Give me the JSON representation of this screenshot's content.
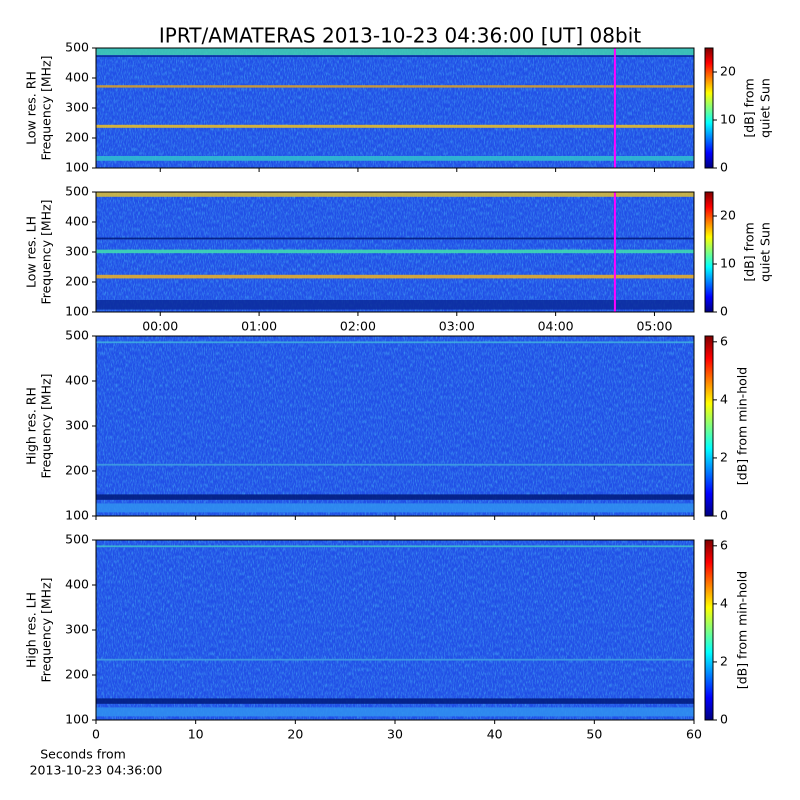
{
  "chart_data": [
    {
      "type": "heatmap",
      "title": "IPRT/AMATERAS 2013-10-23 04:36:00 [UT]   08bit",
      "ylabel": [
        "Low res. RH",
        "Frequency [MHz]"
      ],
      "ylim": [
        100,
        500
      ],
      "yticks": [
        100,
        200,
        300,
        400,
        500
      ],
      "xlim": [
        -0.65,
        5.4
      ],
      "vline": 4.6,
      "vline_color": "#ff00ff",
      "colorbar": {
        "label": [
          "[dB] from",
          "quiet Sun"
        ],
        "lim": [
          0,
          25
        ],
        "ticks": [
          0,
          10,
          20
        ]
      }
    },
    {
      "type": "heatmap",
      "ylabel": [
        "Low res. LH",
        "Frequency [MHz]"
      ],
      "ylim": [
        100,
        500
      ],
      "yticks": [
        100,
        200,
        300,
        400,
        500
      ],
      "xlim": [
        -0.65,
        5.4
      ],
      "vline": 4.6,
      "vline_color": "#ff00ff",
      "xticks": [
        {
          "value": 0,
          "label": "00:00"
        },
        {
          "value": 1,
          "label": "01:00"
        },
        {
          "value": 2,
          "label": "02:00"
        },
        {
          "value": 3,
          "label": "03:00"
        },
        {
          "value": 4,
          "label": "04:00"
        },
        {
          "value": 5,
          "label": "05:00"
        }
      ],
      "colorbar": {
        "label": [
          "[dB] from",
          "quiet Sun"
        ],
        "lim": [
          0,
          25
        ],
        "ticks": [
          0,
          10,
          20
        ]
      }
    },
    {
      "type": "heatmap",
      "ylabel": [
        "High res. RH",
        "Frequency [MHz]"
      ],
      "ylim": [
        100,
        500
      ],
      "yticks": [
        100,
        200,
        300,
        400,
        500
      ],
      "xlim": [
        0,
        60
      ],
      "colorbar": {
        "label": [
          "[dB] from min-hold"
        ],
        "lim": [
          0,
          6.2
        ],
        "ticks": [
          0,
          2,
          4,
          6
        ]
      }
    },
    {
      "type": "heatmap",
      "ylabel": [
        "High res. LH",
        "Frequency [MHz]"
      ],
      "ylim": [
        100,
        500
      ],
      "yticks": [
        100,
        200,
        300,
        400,
        500
      ],
      "xlim": [
        0,
        60
      ],
      "xticks": [
        0,
        10,
        20,
        30,
        40,
        50,
        60
      ],
      "xlabel": [
        "Seconds from",
        "2013-10-23 04:36:00"
      ],
      "colorbar": {
        "label": [
          "[dB] from min-hold"
        ],
        "lim": [
          0,
          6.2
        ],
        "ticks": [
          0,
          2,
          4,
          6
        ]
      }
    }
  ]
}
